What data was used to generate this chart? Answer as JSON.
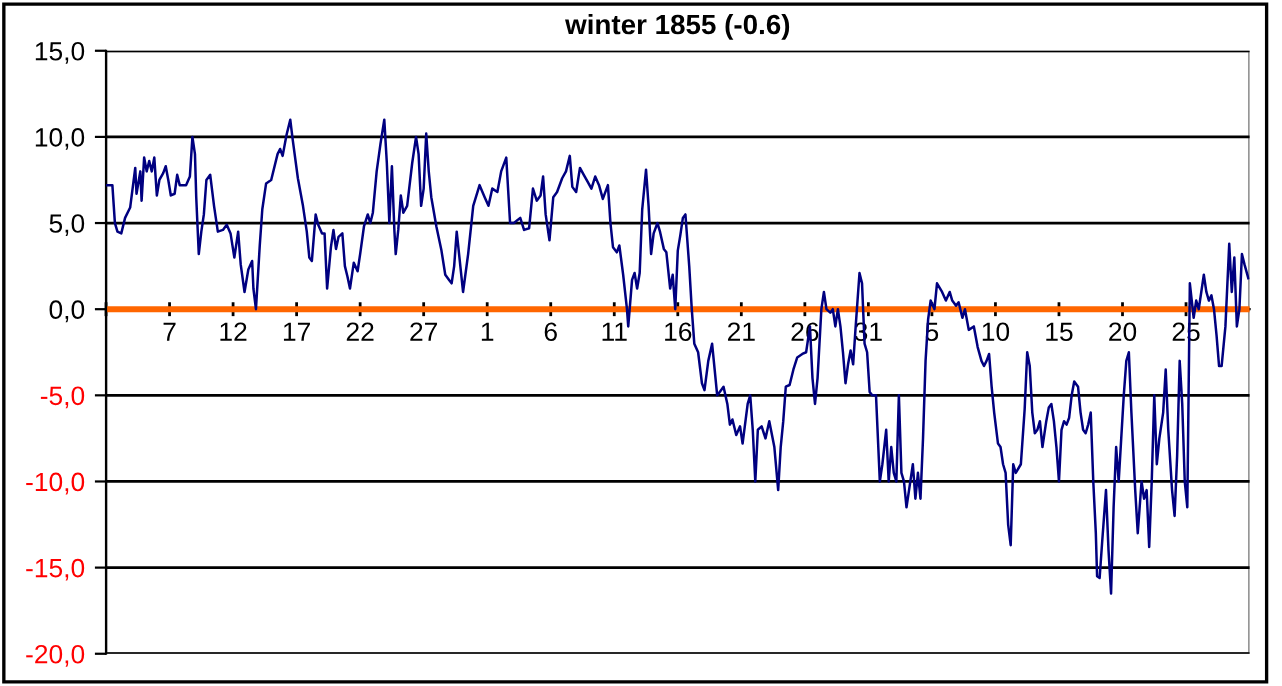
{
  "chart_data": {
    "type": "line",
    "title": "winter 1855 (-0.6)",
    "x": [
      "1854-12-02T02:24",
      "1854-12-02T12:00",
      "1854-12-02T16:48",
      "1854-12-02T21:36",
      "1854-12-03T04:48",
      "1854-12-03T12:00",
      "1854-12-03T21:36",
      "1854-12-04T07:12",
      "1854-12-04T09:36",
      "1854-12-04T16:48",
      "1854-12-04T19:12",
      "1854-12-05T00:00",
      "1854-12-05T04:48",
      "1854-12-05T09:36",
      "1854-12-05T14:24",
      "1854-12-05T19:12",
      "1854-12-06T00:00",
      "1854-12-06T04:48",
      "1854-12-06T12:00",
      "1854-12-06T16:48",
      "1854-12-06T21:36",
      "1854-12-07T02:24",
      "1854-12-07T09:36",
      "1854-12-07T14:24",
      "1854-12-07T19:12",
      "1854-12-08T07:12",
      "1854-12-08T14:24",
      "1854-12-08T19:12",
      "1854-12-09T00:00",
      "1854-12-09T02:24",
      "1854-12-09T07:12",
      "1854-12-09T12:00",
      "1854-12-09T16:48",
      "1854-12-09T21:36",
      "1854-12-10T04:48",
      "1854-12-10T12:00",
      "1854-12-10T19:12",
      "1854-12-11T04:48",
      "1854-12-11T12:00",
      "1854-12-11T19:12",
      "1854-12-12T02:24",
      "1854-12-12T09:36",
      "1854-12-12T14:24",
      "1854-12-12T21:36",
      "1854-12-13T04:48",
      "1854-12-13T12:00",
      "1854-12-13T14:24",
      "1854-12-13T19:12",
      "1854-12-14T02:24",
      "1854-12-14T07:12",
      "1854-12-14T14:24",
      "1854-12-15T00:00",
      "1854-12-15T12:00",
      "1854-12-15T16:48",
      "1854-12-15T21:36",
      "1854-12-16T04:48",
      "1854-12-16T12:00",
      "1854-12-16T16:48",
      "1854-12-17T02:24",
      "1854-12-17T12:00",
      "1854-12-17T19:12",
      "1854-12-18T00:00",
      "1854-12-18T04:48",
      "1854-12-18T12:00",
      "1854-12-18T16:48",
      "1854-12-19T00:00",
      "1854-12-19T04:48",
      "1854-12-19T09:36",
      "1854-12-19T16:48",
      "1854-12-19T21:36",
      "1854-12-20T02:24",
      "1854-12-20T07:12",
      "1854-12-20T14:24",
      "1854-12-20T19:12",
      "1854-12-21T00:00",
      "1854-12-21T04:48",
      "1854-12-21T12:00",
      "1854-12-21T19:12",
      "1854-12-22T00:00",
      "1854-12-22T07:12",
      "1854-12-22T14:24",
      "1854-12-22T19:12",
      "1854-12-23T00:00",
      "1854-12-23T07:12",
      "1854-12-23T14:24",
      "1854-12-23T21:36",
      "1854-12-24T02:24",
      "1854-12-24T07:12",
      "1854-12-24T12:00",
      "1854-12-24T16:48",
      "1854-12-24T19:12",
      "1854-12-25T00:00",
      "1854-12-25T04:48",
      "1854-12-25T09:36",
      "1854-12-25T16:48",
      "1854-12-26T02:24",
      "1854-12-26T09:36",
      "1854-12-26T14:24",
      "1854-12-26T19:12",
      "1854-12-27T00:00",
      "1854-12-27T04:48",
      "1854-12-27T09:36",
      "1854-12-27T14:24",
      "1854-12-28T00:00",
      "1854-12-28T09:36",
      "1854-12-28T16:48",
      "1854-12-29T00:00",
      "1854-12-29T04:48",
      "1854-12-29T09:36",
      "1854-12-29T14:24",
      "1854-12-30T02:24",
      "1854-12-30T12:00",
      "1854-12-30T21:36",
      "1854-12-31T09:36",
      "1854-12-31T19:12",
      "1855-01-01T02:24",
      "1855-01-01T09:36",
      "1855-01-01T19:12",
      "1855-01-02T02:24",
      "1855-01-02T12:00",
      "1855-01-02T19:12",
      "1855-01-03T02:24",
      "1855-01-03T14:24",
      "1855-01-03T21:36",
      "1855-01-04T07:12",
      "1855-01-04T14:24",
      "1855-01-04T21:36",
      "1855-01-05T04:48",
      "1855-01-05T09:36",
      "1855-01-05T14:24",
      "1855-01-05T21:36",
      "1855-01-06T04:48",
      "1855-01-06T12:00",
      "1855-01-06T21:36",
      "1855-01-07T04:48",
      "1855-01-07T12:00",
      "1855-01-07T16:48",
      "1855-01-08T00:00",
      "1855-01-08T07:12",
      "1855-01-08T14:24",
      "1855-01-08T21:36",
      "1855-01-09T04:48",
      "1855-01-09T12:00",
      "1855-01-09T19:12",
      "1855-01-10T02:24",
      "1855-01-10T12:00",
      "1855-01-10T16:48",
      "1855-01-10T21:36",
      "1855-01-11T04:48",
      "1855-01-11T09:36",
      "1855-01-11T16:48",
      "1855-01-12T00:00",
      "1855-01-12T02:24",
      "1855-01-12T09:36",
      "1855-01-12T14:24",
      "1855-01-12T19:12",
      "1855-01-13T00:00",
      "1855-01-13T04:48",
      "1855-01-13T12:00",
      "1855-01-13T16:48",
      "1855-01-13T21:36",
      "1855-01-14T02:24",
      "1855-01-14T09:36",
      "1855-01-14T14:24",
      "1855-01-14T21:36",
      "1855-01-15T02:24",
      "1855-01-15T09:36",
      "1855-01-15T14:24",
      "1855-01-15T19:12",
      "1855-01-16T00:00",
      "1855-01-16T04:48",
      "1855-01-16T09:36",
      "1855-01-16T14:24",
      "1855-01-16T21:36",
      "1855-01-17T02:24",
      "1855-01-17T07:12",
      "1855-01-17T14:24",
      "1855-01-17T21:36",
      "1855-01-18T02:24",
      "1855-01-18T09:36",
      "1855-01-18T16:48",
      "1855-01-18T21:36",
      "1855-01-19T02:24",
      "1855-01-19T07:12",
      "1855-01-19T14:24",
      "1855-01-19T21:36",
      "1855-01-20T02:24",
      "1855-01-20T07:12",
      "1855-01-20T14:24",
      "1855-01-20T21:36",
      "1855-01-21T02:24",
      "1855-01-21T12:00",
      "1855-01-21T16:48",
      "1855-01-21T21:36",
      "1855-01-22T02:24",
      "1855-01-22T07:12",
      "1855-01-22T14:24",
      "1855-01-22T21:36",
      "1855-01-23T04:48",
      "1855-01-23T14:24",
      "1855-01-23T21:36",
      "1855-01-24T02:24",
      "1855-01-24T07:12",
      "1855-01-24T12:00",
      "1855-01-24T19:12",
      "1855-01-25T02:24",
      "1855-01-25T09:36",
      "1855-01-25T19:12",
      "1855-01-26T02:24",
      "1855-01-26T09:36",
      "1855-01-26T14:24",
      "1855-01-26T19:12",
      "1855-01-27T00:00",
      "1855-01-27T07:12",
      "1855-01-27T12:00",
      "1855-01-27T16:48",
      "1855-01-28T00:00",
      "1855-01-28T04:48",
      "1855-01-28T09:36",
      "1855-01-28T14:24",
      "1855-01-28T19:12",
      "1855-01-29T00:00",
      "1855-01-29T04:48",
      "1855-01-29T09:36",
      "1855-01-29T14:24",
      "1855-01-29T19:12",
      "1855-01-30T00:00",
      "1855-01-30T07:12",
      "1855-01-30T12:00",
      "1855-01-30T16:48",
      "1855-01-30T21:36",
      "1855-01-31T02:24",
      "1855-01-31T07:12",
      "1855-01-31T14:24",
      "1855-01-31T21:36",
      "1855-02-01T02:24",
      "1855-02-01T09:36",
      "1855-02-01T14:24",
      "1855-02-01T19:12",
      "1855-02-02T00:00",
      "1855-02-02T04:48",
      "1855-02-02T09:36",
      "1855-02-02T14:24",
      "1855-02-02T19:12",
      "1855-02-03T00:00",
      "1855-02-03T04:48",
      "1855-02-03T12:00",
      "1855-02-03T16:48",
      "1855-02-03T21:36",
      "1855-02-04T02:24",
      "1855-02-04T07:12",
      "1855-02-04T12:00",
      "1855-02-04T16:48",
      "1855-02-04T21:36",
      "1855-02-05T04:48",
      "1855-02-05T09:36",
      "1855-02-05T19:12",
      "1855-02-06T02:24",
      "1855-02-06T09:36",
      "1855-02-06T14:24",
      "1855-02-06T21:36",
      "1855-02-07T02:24",
      "1855-02-07T09:36",
      "1855-02-07T14:24",
      "1855-02-07T21:36",
      "1855-02-08T07:12",
      "1855-02-08T14:24",
      "1855-02-08T21:36",
      "1855-02-09T02:24",
      "1855-02-09T07:12",
      "1855-02-09T12:00",
      "1855-02-09T16:48",
      "1855-02-09T21:36",
      "1855-02-10T04:48",
      "1855-02-10T09:36",
      "1855-02-10T14:24",
      "1855-02-10T19:12",
      "1855-02-11T00:00",
      "1855-02-11T04:48",
      "1855-02-11T09:36",
      "1855-02-11T14:24",
      "1855-02-12T00:00",
      "1855-02-12T07:12",
      "1855-02-12T12:00",
      "1855-02-12T16:48",
      "1855-02-12T21:36",
      "1855-02-13T02:24",
      "1855-02-13T07:12",
      "1855-02-13T12:00",
      "1855-02-13T16:48",
      "1855-02-14T00:00",
      "1855-02-14T04:48",
      "1855-02-14T09:36",
      "1855-02-14T14:24",
      "1855-02-14T19:12",
      "1855-02-15T00:00",
      "1855-02-15T04:48",
      "1855-02-15T09:36",
      "1855-02-15T14:24",
      "1855-02-15T19:12",
      "1855-02-16T00:00",
      "1855-02-16T04:48",
      "1855-02-16T12:00",
      "1855-02-16T16:48",
      "1855-02-16T21:36",
      "1855-02-17T02:24",
      "1855-02-17T07:12",
      "1855-02-17T12:00",
      "1855-02-17T16:48",
      "1855-02-17T21:36",
      "1855-02-18T00:00",
      "1855-02-18T04:48",
      "1855-02-18T09:36",
      "1855-02-18T16:48",
      "1855-02-18T21:36",
      "1855-02-19T02:24",
      "1855-02-19T07:12",
      "1855-02-19T12:00",
      "1855-02-19T16:48",
      "1855-02-19T21:36",
      "1855-02-20T02:24",
      "1855-02-20T07:12",
      "1855-02-20T12:00",
      "1855-02-20T16:48",
      "1855-02-21T00:00",
      "1855-02-21T04:48",
      "1855-02-21T12:00",
      "1855-02-21T16:48",
      "1855-02-21T21:36",
      "1855-02-22T02:24",
      "1855-02-22T07:12",
      "1855-02-22T12:00",
      "1855-02-22T16:48",
      "1855-02-22T21:36",
      "1855-02-23T04:48",
      "1855-02-23T09:36",
      "1855-02-23T14:24",
      "1855-02-23T21:36",
      "1855-02-24T02:24",
      "1855-02-24T07:12",
      "1855-02-24T12:00",
      "1855-02-24T16:48",
      "1855-02-24T21:36",
      "1855-02-25T02:24",
      "1855-02-25T07:12",
      "1855-02-25T14:24",
      "1855-02-25T19:12",
      "1855-02-26T00:00",
      "1855-02-26T04:48",
      "1855-02-26T09:36",
      "1855-02-26T14:24",
      "1855-02-26T19:12",
      "1855-02-27T00:00",
      "1855-02-27T04:48",
      "1855-02-27T09:36",
      "1855-02-27T14:24",
      "1855-02-27T19:12",
      "1855-02-28T02:24",
      "1855-02-28T09:36",
      "1855-02-28T14:24",
      "1855-02-28T19:12",
      "1855-03-01T00:00",
      "1855-03-01T04:48",
      "1855-03-01T09:36",
      "1855-03-01T14:24",
      "1855-03-01T21:36"
    ],
    "series": [
      {
        "color": "#000080",
        "values": [
          7.2,
          7.2,
          5.0,
          4.5,
          4.4,
          5.3,
          5.9,
          8.2,
          6.7,
          8.0,
          6.3,
          8.8,
          8.0,
          8.6,
          8.0,
          8.8,
          6.6,
          7.5,
          7.9,
          8.3,
          7.5,
          6.6,
          6.7,
          7.8,
          7.2,
          7.2,
          7.7,
          10.0,
          9.0,
          6.5,
          3.2,
          4.5,
          5.5,
          7.5,
          7.8,
          6.0,
          4.5,
          4.6,
          4.9,
          4.4,
          3.0,
          4.5,
          2.6,
          1.0,
          2.3,
          2.8,
          1.2,
          0.0,
          3.7,
          5.8,
          7.3,
          7.5,
          9.0,
          9.3,
          8.9,
          10.1,
          11.0,
          9.8,
          7.6,
          6.0,
          4.5,
          3.0,
          2.8,
          5.5,
          4.9,
          4.4,
          4.4,
          1.2,
          3.6,
          4.6,
          3.5,
          4.2,
          4.4,
          2.5,
          1.9,
          1.2,
          2.7,
          2.2,
          3.2,
          4.8,
          5.5,
          5.0,
          5.6,
          8.0,
          9.6,
          11.0,
          8.5,
          5.0,
          8.3,
          4.5,
          3.2,
          4.6,
          6.6,
          5.6,
          6.0,
          8.5,
          10.0,
          9.0,
          6.0,
          7.0,
          10.2,
          8.0,
          6.5,
          4.8,
          3.4,
          2.0,
          1.7,
          1.5,
          2.5,
          4.5,
          1.0,
          3.2,
          6.0,
          7.2,
          6.5,
          6.0,
          7.0,
          6.8,
          8.0,
          8.8,
          5.0,
          5.0,
          5.3,
          4.6,
          4.7,
          7.0,
          6.3,
          6.6,
          7.7,
          5.5,
          4.0,
          6.5,
          6.8,
          7.6,
          8.0,
          8.9,
          7.1,
          6.8,
          8.2,
          7.8,
          7.4,
          7.0,
          7.7,
          7.2,
          6.4,
          7.2,
          5.0,
          3.6,
          3.3,
          3.7,
          2.0,
          0.0,
          -1.0,
          1.7,
          2.1,
          1.2,
          2.1,
          5.8,
          8.1,
          6.0,
          3.2,
          4.4,
          5.0,
          4.5,
          3.5,
          3.3,
          1.2,
          2.0,
          0.0,
          3.4,
          4.3,
          5.3,
          5.5,
          2.5,
          0.0,
          -2.0,
          -2.5,
          -4.3,
          -4.7,
          -3.0,
          -2.0,
          -3.5,
          -5.0,
          -4.8,
          -4.5,
          -5.5,
          -6.7,
          -6.4,
          -7.3,
          -6.8,
          -7.8,
          -5.5,
          -5.0,
          -7.0,
          -10.0,
          -7.0,
          -6.8,
          -7.5,
          -6.5,
          -8.0,
          -10.5,
          -8.0,
          -6.5,
          -4.5,
          -4.4,
          -3.5,
          -2.8,
          -2.6,
          -2.5,
          -1.0,
          -4.0,
          -5.5,
          -4.0,
          0.0,
          1.0,
          0.0,
          -0.2,
          0.0,
          -1.0,
          0.0,
          -1.0,
          -2.5,
          -4.3,
          -3.2,
          -2.4,
          -3.2,
          -1.0,
          2.1,
          1.5,
          -2.0,
          -2.5,
          -4.8,
          -5.0,
          -5.0,
          -10.0,
          -9.0,
          -7.0,
          -10.0,
          -8.0,
          -9.5,
          -10.0,
          -5.0,
          -9.5,
          -10.0,
          -11.5,
          -10.5,
          -9.0,
          -11.0,
          -9.5,
          -11.0,
          -7.5,
          -3.0,
          -0.6,
          0.5,
          0.0,
          1.5,
          1.0,
          0.5,
          1.0,
          0.5,
          0.2,
          0.4,
          -0.5,
          0.0,
          -1.2,
          -1.0,
          -2.2,
          -3.0,
          -3.3,
          -3.0,
          -2.6,
          -4.5,
          -6.0,
          -7.8,
          -8.0,
          -9.0,
          -9.5,
          -12.5,
          -13.7,
          -9.0,
          -9.5,
          -9.0,
          -5.8,
          -2.5,
          -3.3,
          -6.0,
          -7.2,
          -7.0,
          -6.5,
          -8.0,
          -6.5,
          -5.7,
          -5.5,
          -6.5,
          -8.0,
          -10.0,
          -7.0,
          -6.5,
          -6.7,
          -6.3,
          -5.0,
          -4.2,
          -4.5,
          -6.0,
          -7.0,
          -7.2,
          -6.7,
          -6.0,
          -10.0,
          -13.0,
          -15.5,
          -15.6,
          -13.5,
          -10.5,
          -14.0,
          -16.5,
          -11.5,
          -8.0,
          -10.0,
          -7.5,
          -5.0,
          -3.0,
          -2.5,
          -6.0,
          -10.5,
          -13.0,
          -10.0,
          -11.0,
          -10.5,
          -13.8,
          -10.0,
          -5.0,
          -9.0,
          -7.5,
          -6.0,
          -3.5,
          -7.0,
          -10.5,
          -12.0,
          -8.5,
          -3.0,
          -5.5,
          -10.0,
          -11.5,
          1.5,
          -0.5,
          0.5,
          0.0,
          1.0,
          2.0,
          1.0,
          0.5,
          0.8,
          0.0,
          -1.5,
          -3.3,
          -3.3,
          -1.0,
          3.8,
          1.0,
          3.0,
          -1.0,
          0.0,
          3.2,
          2.6,
          1.8
        ]
      }
    ],
    "xlim": [
      "1854-12-02",
      "1855-03-02"
    ],
    "xticks": [
      {
        "value": "1854-12-02",
        "label": null
      },
      {
        "value": "1854-12-07",
        "label": "7"
      },
      {
        "value": "1854-12-12",
        "label": "12"
      },
      {
        "value": "1854-12-17",
        "label": "17"
      },
      {
        "value": "1854-12-22",
        "label": "22"
      },
      {
        "value": "1854-12-27",
        "label": "27"
      },
      {
        "value": "1855-01-01",
        "label": "1"
      },
      {
        "value": "1855-01-06",
        "label": "6"
      },
      {
        "value": "1855-01-11",
        "label": "11"
      },
      {
        "value": "1855-01-16",
        "label": "16"
      },
      {
        "value": "1855-01-21",
        "label": "21"
      },
      {
        "value": "1855-01-26",
        "label": "26"
      },
      {
        "value": "1855-01-31",
        "label": "31"
      },
      {
        "value": "1855-02-05",
        "label": "5"
      },
      {
        "value": "1855-02-10",
        "label": "10"
      },
      {
        "value": "1855-02-15",
        "label": "15"
      },
      {
        "value": "1855-02-20",
        "label": "20"
      },
      {
        "value": "1855-02-25",
        "label": "25"
      }
    ],
    "ylim": [
      -20,
      15
    ],
    "yticks": [
      {
        "value": 15,
        "label": "15,0"
      },
      {
        "value": 10,
        "label": "10,0"
      },
      {
        "value": 5,
        "label": "5,0"
      },
      {
        "value": 0,
        "label": "0,0"
      },
      {
        "value": -5,
        "label": "-5,0"
      },
      {
        "value": -10,
        "label": "-10,0"
      },
      {
        "value": -15,
        "label": "-15,0"
      },
      {
        "value": -20,
        "label": "-20,0"
      }
    ],
    "ref_lines": [
      {
        "axis": "y",
        "value": 0,
        "label": null,
        "color": "#ff6600"
      }
    ],
    "grid": "y",
    "legend": false,
    "marker": "none",
    "line_style": "solid"
  }
}
